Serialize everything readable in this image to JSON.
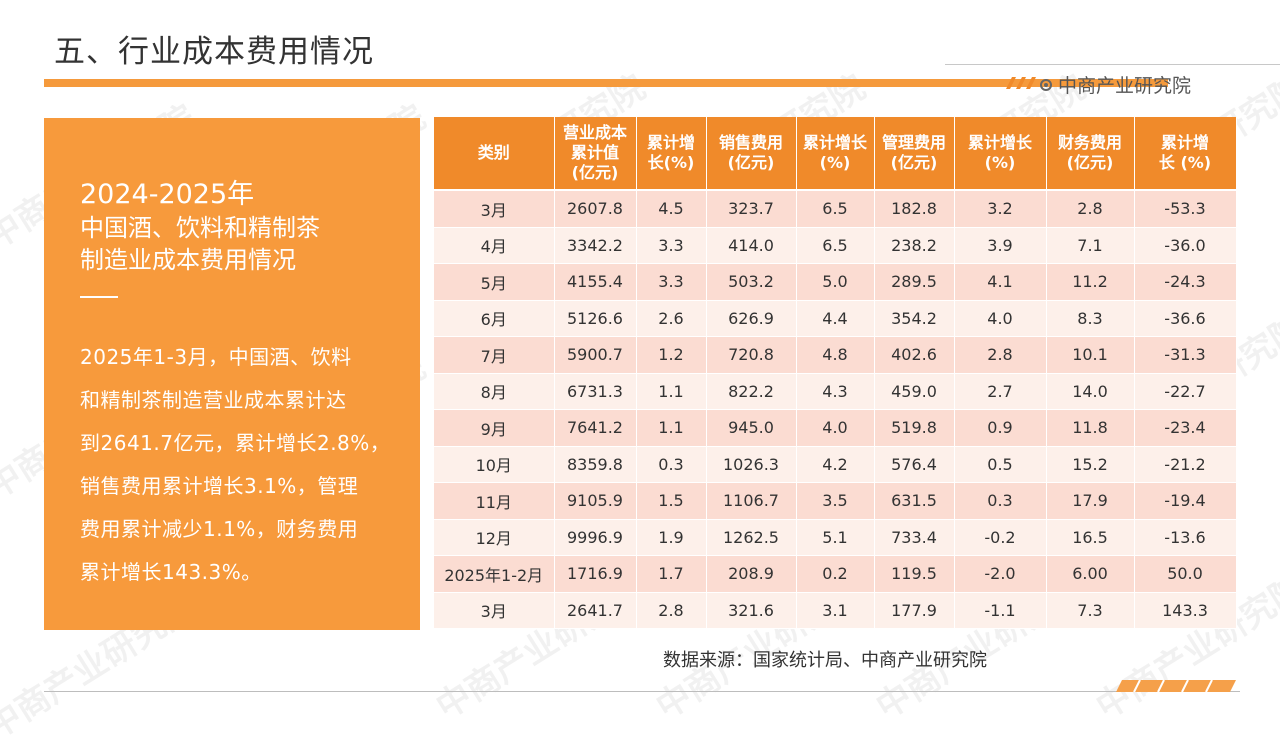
{
  "page": {
    "title": "五、行业成本费用情况",
    "brand": "中商产业研究院",
    "source": "数据来源：国家统计局、中商产业研究院",
    "watermark": "中商产业研究院",
    "accent_color": "#f59a3c"
  },
  "side": {
    "year": "2024-2025年",
    "subtitle_line1": "中国酒、饮料和精制茶",
    "subtitle_line2": "制造业成本费用情况",
    "desc_lines": [
      "2025年1-3月，中国酒、饮料",
      "和精制茶制造营业成本累计达",
      "到2641.7亿元，累计增长2.8%，",
      "销售费用累计增长3.1%，管理",
      "费用累计减少1.1%，财务费用",
      "累计增长143.3%。"
    ]
  },
  "table": {
    "headers": [
      [
        "类别"
      ],
      [
        "营业成本",
        "累计值",
        "(亿元)"
      ],
      [
        "累计增",
        "长(%)"
      ],
      [
        "销售费用",
        "(亿元)"
      ],
      [
        "累计增长",
        "(%)"
      ],
      [
        "管理费用",
        "(亿元)"
      ],
      [
        "累计增长",
        "(%)"
      ],
      [
        "财务费用",
        "(亿元)"
      ],
      [
        "累计增",
        "长 (%)"
      ]
    ],
    "rows": [
      [
        "3月",
        "2607.8",
        "4.5",
        "323.7",
        "6.5",
        "182.8",
        "3.2",
        "2.8",
        "-53.3"
      ],
      [
        "4月",
        "3342.2",
        "3.3",
        "414.0",
        "6.5",
        "238.2",
        "3.9",
        "7.1",
        "-36.0"
      ],
      [
        "5月",
        "4155.4",
        "3.3",
        "503.2",
        "5.0",
        "289.5",
        "4.1",
        "11.2",
        "-24.3"
      ],
      [
        "6月",
        "5126.6",
        "2.6",
        "626.9",
        "4.4",
        "354.2",
        "4.0",
        "8.3",
        "-36.6"
      ],
      [
        "7月",
        "5900.7",
        "1.2",
        "720.8",
        "4.8",
        "402.6",
        "2.8",
        "10.1",
        "-31.3"
      ],
      [
        "8月",
        "6731.3",
        "1.1",
        "822.2",
        "4.3",
        "459.0",
        "2.7",
        "14.0",
        "-22.7"
      ],
      [
        "9月",
        "7641.2",
        "1.1",
        "945.0",
        "4.0",
        "519.8",
        "0.9",
        "11.8",
        "-23.4"
      ],
      [
        "10月",
        "8359.8",
        "0.3",
        "1026.3",
        "4.2",
        "576.4",
        "0.5",
        "15.2",
        "-21.2"
      ],
      [
        "11月",
        "9105.9",
        "1.5",
        "1106.7",
        "3.5",
        "631.5",
        "0.3",
        "17.9",
        "-19.4"
      ],
      [
        "12月",
        "9996.9",
        "1.9",
        "1262.5",
        "5.1",
        "733.4",
        "-0.2",
        "16.5",
        "-13.6"
      ],
      [
        "2025年1-2月",
        "1716.9",
        "1.7",
        "208.9",
        "0.2",
        "119.5",
        "-2.0",
        "6.00",
        "50.0"
      ],
      [
        "3月",
        "2641.7",
        "2.8",
        "321.6",
        "3.1",
        "177.9",
        "-1.1",
        "7.3",
        "143.3"
      ]
    ]
  }
}
